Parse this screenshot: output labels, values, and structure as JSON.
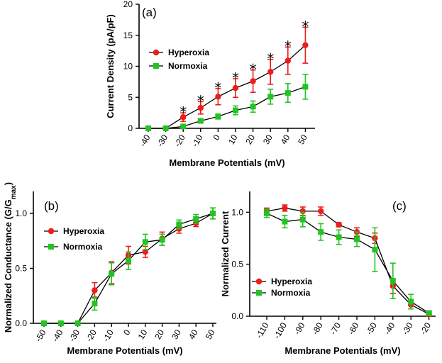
{
  "colors": {
    "hyperoxia": "#ee1c1c",
    "normoxia": "#22c422",
    "line": "#000000"
  },
  "chart_data": [
    {
      "id": "a",
      "type": "line",
      "panel_label": "(a)",
      "xlabel": "Membrane Potentials (mV)",
      "ylabel": "Current Density (pA/pF)",
      "ylim": [
        0,
        20
      ],
      "yticks": [
        "0",
        "5",
        "10",
        "15",
        "20"
      ],
      "xtick_labels": [
        "-40",
        "-30",
        "-20",
        "-10",
        "0",
        "10",
        "20",
        "30",
        "40",
        "50"
      ],
      "legend_position": "top-left",
      "series": [
        {
          "name": "Hyperoxia",
          "color_key": "hyperoxia",
          "marker": "circle",
          "x": [
            -40,
            -30,
            -20,
            -10,
            0,
            10,
            20,
            30,
            40,
            50
          ],
          "y": [
            0,
            0,
            1.8,
            3.3,
            5.1,
            6.5,
            7.6,
            9.1,
            10.9,
            13.4
          ],
          "err": [
            0,
            0,
            0.7,
            1.0,
            1.3,
            1.5,
            1.8,
            2.0,
            2.2,
            2.9
          ]
        },
        {
          "name": "Normoxia",
          "color_key": "normoxia",
          "marker": "square",
          "x": [
            -40,
            -30,
            -20,
            -10,
            0,
            10,
            20,
            30,
            40,
            50
          ],
          "y": [
            0,
            0,
            0.3,
            1.2,
            1.9,
            2.9,
            3.5,
            5.1,
            5.7,
            6.7
          ],
          "err": [
            0,
            0,
            0.2,
            0.3,
            0.4,
            0.7,
            0.9,
            1.2,
            1.5,
            2.0
          ]
        }
      ],
      "annotations": [
        {
          "text": "*",
          "x": -20
        },
        {
          "text": "*",
          "x": -10
        },
        {
          "text": "*",
          "x": 0
        },
        {
          "text": "*",
          "x": 10
        },
        {
          "text": "*",
          "x": 20
        },
        {
          "text": "*",
          "x": 30
        },
        {
          "text": "*",
          "x": 40
        },
        {
          "text": "*",
          "x": 50
        }
      ]
    },
    {
      "id": "b",
      "type": "line",
      "panel_label": "(b)",
      "xlabel": "Membrane Potentials (mV)",
      "ylabel": "Normalized Conductance (G/G",
      "ylabel_sub": "max",
      "ylabel_end": ")",
      "ylim": [
        0,
        1.2
      ],
      "yticks": [
        "0.0",
        "0.5",
        "1.0"
      ],
      "xtick_labels": [
        "-50",
        "-40",
        "-30",
        "-20",
        "-10",
        "0",
        "10",
        "20",
        "30",
        "40",
        "50"
      ],
      "legend_position": "middle-left",
      "series": [
        {
          "name": "Hyperoxia",
          "color_key": "hyperoxia",
          "marker": "circle",
          "x": [
            -50,
            -40,
            -30,
            -20,
            -10,
            0,
            10,
            20,
            30,
            40,
            50
          ],
          "y": [
            0,
            0,
            0,
            0.3,
            0.46,
            0.62,
            0.65,
            0.77,
            0.86,
            0.91,
            1.0
          ],
          "err": [
            0,
            0,
            0,
            0.07,
            0.1,
            0.08,
            0.05,
            0.06,
            0.04,
            0.03,
            0.05
          ]
        },
        {
          "name": "Normoxia",
          "color_key": "normoxia",
          "marker": "square",
          "x": [
            -50,
            -40,
            -30,
            -20,
            -10,
            0,
            10,
            20,
            30,
            40,
            50
          ],
          "y": [
            0,
            0,
            0,
            0.18,
            0.45,
            0.57,
            0.74,
            0.76,
            0.9,
            0.95,
            1.0
          ],
          "err": [
            0,
            0,
            0,
            0.06,
            0.1,
            0.08,
            0.07,
            0.05,
            0.04,
            0.04,
            0.05
          ]
        }
      ]
    },
    {
      "id": "c",
      "type": "line",
      "panel_label": "(c)",
      "xlabel": "Membrane Potentials (mV)",
      "ylabel": "Normalized Current",
      "ylim": [
        0,
        1.2
      ],
      "yticks": [
        "0.0",
        "0.5",
        "1.0"
      ],
      "xtick_labels": [
        "-110",
        "-100",
        "-90",
        "-80",
        "-70",
        "-60",
        "-50",
        "-40",
        "-30",
        "-20"
      ],
      "legend_position": "bottom-left",
      "series": [
        {
          "name": "Hyperoxia",
          "color_key": "hyperoxia",
          "marker": "circle",
          "x": [
            -110,
            -100,
            -90,
            -80,
            -70,
            -60,
            -50,
            -40,
            -30,
            -20
          ],
          "y": [
            1.01,
            1.04,
            1.01,
            1.01,
            0.88,
            0.81,
            0.75,
            0.29,
            0.11,
            0.02
          ],
          "err": [
            0.03,
            0.03,
            0.04,
            0.04,
            0.02,
            0.04,
            0.05,
            0.07,
            0.04,
            0.02
          ]
        },
        {
          "name": "Normoxia",
          "color_key": "normoxia",
          "marker": "square",
          "x": [
            -110,
            -100,
            -90,
            -80,
            -70,
            -60,
            -50,
            -40,
            -30,
            -20
          ],
          "y": [
            0.99,
            0.91,
            0.93,
            0.81,
            0.76,
            0.74,
            0.64,
            0.34,
            0.14,
            0.03
          ],
          "err": [
            0.04,
            0.06,
            0.07,
            0.08,
            0.07,
            0.07,
            0.21,
            0.17,
            0.07,
            0.02
          ]
        }
      ]
    }
  ]
}
